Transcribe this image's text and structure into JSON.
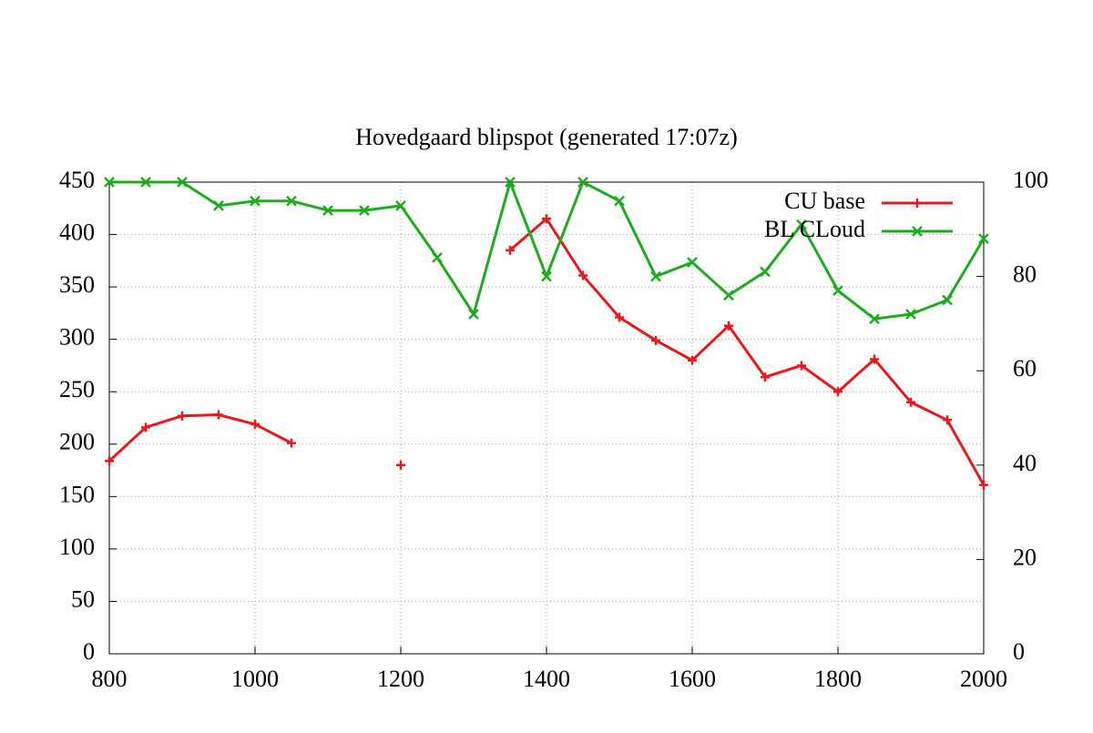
{
  "chart_data": {
    "type": "line",
    "title": "Hovedgaard  blipspot  (generated  17:07z)",
    "x": [
      800,
      850,
      900,
      950,
      1000,
      1050,
      1100,
      1150,
      1200,
      1250,
      1300,
      1350,
      1400,
      1450,
      1500,
      1550,
      1600,
      1650,
      1700,
      1750,
      1800,
      1850,
      1900,
      1950,
      2000
    ],
    "series": [
      {
        "name": "CU  base",
        "color": "#e41a1c",
        "marker": "plus",
        "values": [
          184,
          216,
          227,
          228,
          219,
          201,
          null,
          null,
          180,
          null,
          null,
          385,
          415,
          361,
          321,
          299,
          280,
          313,
          264,
          275,
          250,
          281,
          240,
          223,
          161
        ]
      },
      {
        "name": "BL  CLoud",
        "color": "#1faa1f",
        "marker": "cross",
        "axis": "y2",
        "values": [
          100,
          100,
          100,
          95,
          96,
          96,
          94,
          94,
          95,
          84,
          72,
          100,
          80,
          100,
          96,
          80,
          83,
          76,
          81,
          91,
          77,
          71,
          72,
          75,
          88
        ]
      }
    ],
    "xlim": [
      800,
      2000
    ],
    "xticks": [
      800,
      1000,
      1200,
      1400,
      1600,
      1800,
      2000
    ],
    "ylim": [
      0,
      450
    ],
    "yticks": [
      0,
      50,
      100,
      150,
      200,
      250,
      300,
      350,
      400,
      450
    ],
    "y2lim": [
      0,
      100
    ],
    "y2ticks": [
      0,
      20,
      40,
      60,
      80,
      100
    ],
    "grid": true,
    "legend": "top-right"
  }
}
